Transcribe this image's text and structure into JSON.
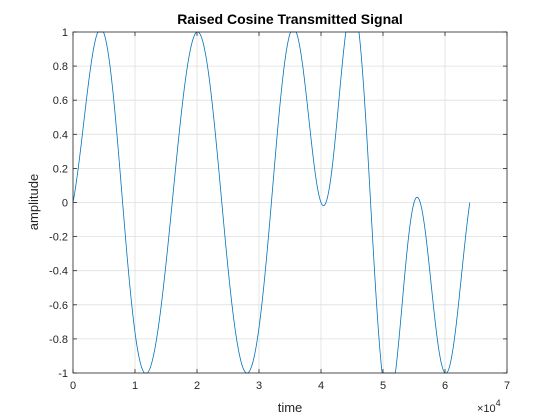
{
  "chart_data": {
    "type": "line",
    "title": "Raised Cosine Transmitted Signal",
    "xlabel": "time",
    "ylabel": "amplitude",
    "x_exponent_label": "×10",
    "x_exponent_power": "4",
    "xlim": [
      0,
      70000
    ],
    "ylim": [
      -1,
      1
    ],
    "grid": true,
    "x_ticks": [
      0,
      10000,
      20000,
      30000,
      40000,
      50000,
      60000,
      70000
    ],
    "x_tick_labels": [
      "0",
      "1",
      "2",
      "3",
      "4",
      "5",
      "6",
      "7"
    ],
    "y_ticks": [
      -1,
      -0.8,
      -0.6,
      -0.4,
      -0.2,
      0,
      0.2,
      0.4,
      0.6,
      0.8,
      1
    ],
    "y_tick_labels": [
      "-1",
      "-0.8",
      "-0.6",
      "-0.4",
      "-0.2",
      "0",
      "0.2",
      "0.4",
      "0.6",
      "0.8",
      "1"
    ],
    "line_color": "#0072BD",
    "x_start": 0,
    "x_end": 64000,
    "symbol_spacing": 8000,
    "symbol_centers": [
      4000,
      12000,
      20000,
      28000,
      36000,
      44000,
      52000,
      60000
    ],
    "symbols": [
      1,
      -1,
      1,
      -1,
      1,
      1,
      -1,
      -1
    ]
  }
}
